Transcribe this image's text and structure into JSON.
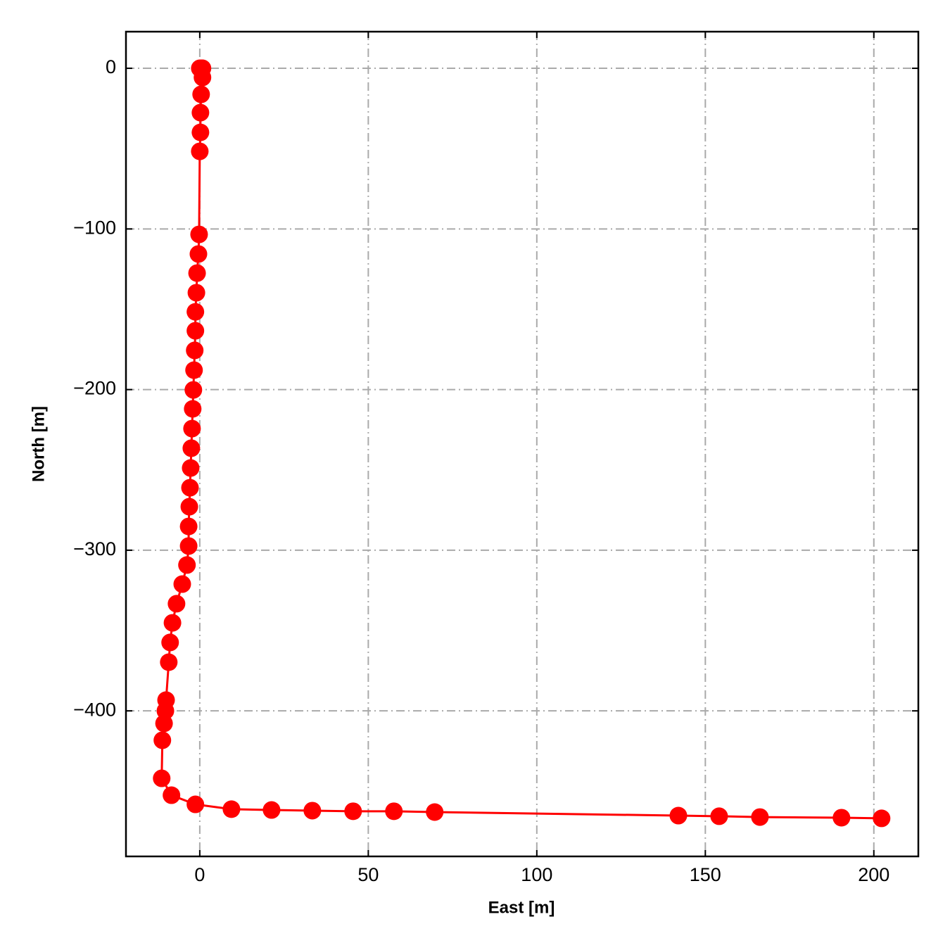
{
  "chart_data": {
    "type": "line",
    "xlabel": "East [m]",
    "ylabel": "North [m]",
    "x": [
      0.0,
      0.6,
      0.8,
      0.8,
      0.4,
      0.2,
      0.2,
      0.0,
      -0.2,
      -0.4,
      -0.8,
      -1.0,
      -1.3,
      -1.3,
      -1.5,
      -1.7,
      -1.9,
      -2.1,
      -2.3,
      -2.5,
      -2.7,
      -2.9,
      -3.1,
      -3.3,
      -3.3,
      -3.8,
      -5.2,
      -6.9,
      -8.1,
      -8.8,
      -9.2,
      -10.0,
      -10.2,
      -10.6,
      -11.1,
      -11.3,
      -8.4,
      -1.3,
      9.4,
      21.3,
      33.4,
      45.5,
      57.6,
      69.7,
      142.0,
      154.1,
      166.2,
      190.4,
      202.3
    ],
    "values": [
      0.0,
      0.0,
      0.0,
      -5.7,
      -16.2,
      -27.6,
      -39.9,
      -51.7,
      -103.4,
      -115.6,
      -127.5,
      -139.7,
      -151.6,
      -163.4,
      -175.6,
      -187.9,
      -200.2,
      -212.0,
      -224.3,
      -236.5,
      -248.8,
      -261.1,
      -272.9,
      -285.2,
      -297.4,
      -309.2,
      -321.1,
      -333.3,
      -345.2,
      -357.4,
      -369.7,
      -393.3,
      -400.0,
      -407.8,
      -418.3,
      -442.0,
      -452.5,
      -458.2,
      -461.2,
      -461.7,
      -462.1,
      -462.5,
      -462.5,
      -463.0,
      -465.2,
      -465.6,
      -466.1,
      -466.5,
      -466.9
    ],
    "color": "#ff0000",
    "xlim": [
      -21.9,
      213.2
    ],
    "ylim": [
      -490.6,
      22.8
    ],
    "xticks": [
      0,
      50,
      100,
      150,
      200
    ],
    "yticks": [
      0,
      {
        "value": -100,
        "label": "−100"
      },
      {
        "value": -200,
        "label": "−200"
      },
      {
        "value": -300,
        "label": "−300"
      },
      {
        "value": -400,
        "label": "−400"
      }
    ],
    "grid": true
  }
}
